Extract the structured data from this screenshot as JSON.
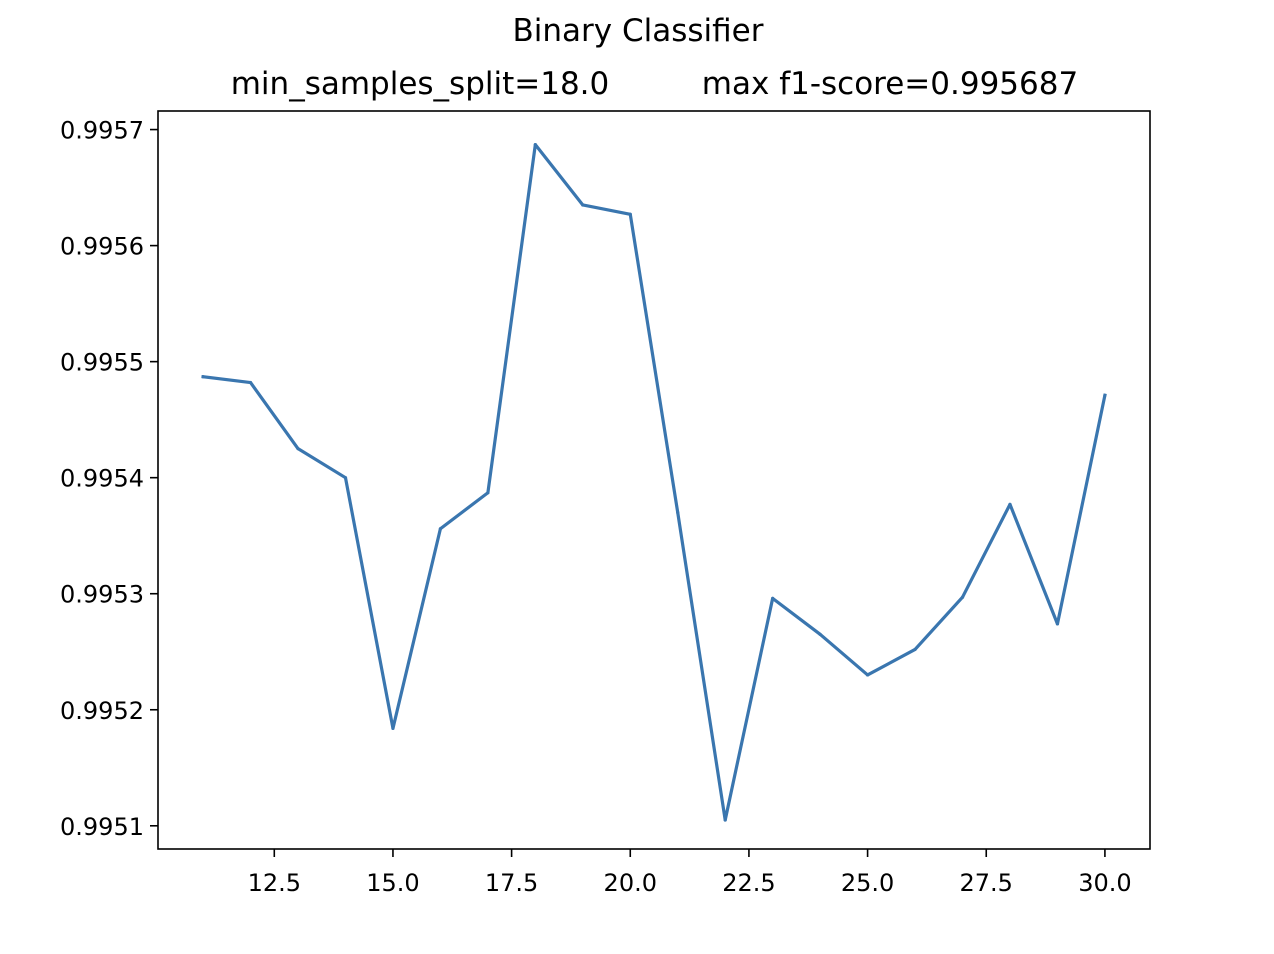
{
  "chart_data": {
    "type": "line",
    "title": "Binary Classifier",
    "subtitle_left": "min_samples_split=18.0",
    "subtitle_right": "max f1-score=0.995687",
    "xlabel": "",
    "ylabel": "",
    "xlim": [
      10.05,
      30.95
    ],
    "ylim": [
      0.99508,
      0.995716
    ],
    "x_ticks": [
      12.5,
      15.0,
      17.5,
      20.0,
      22.5,
      25.0,
      27.5,
      30.0
    ],
    "x_tick_labels": [
      "12.5",
      "15.0",
      "17.5",
      "20.0",
      "22.5",
      "25.0",
      "27.5",
      "30.0"
    ],
    "y_ticks": [
      0.9951,
      0.9952,
      0.9953,
      0.9954,
      0.9955,
      0.9956,
      0.9957
    ],
    "y_tick_labels": [
      "0.9951",
      "0.9952",
      "0.9953",
      "0.9954",
      "0.9955",
      "0.9956",
      "0.9957"
    ],
    "grid": false,
    "legend": "none",
    "series": [
      {
        "color": "#3a76af",
        "x": [
          11,
          12,
          13,
          14,
          15,
          16,
          17,
          18,
          19,
          20,
          21,
          22,
          23,
          24,
          25,
          26,
          27,
          28,
          29,
          30
        ],
        "y": [
          0.995487,
          0.995482,
          0.995425,
          0.9954,
          0.995184,
          0.995356,
          0.995387,
          0.995687,
          0.995635,
          0.995627,
          0.99537,
          0.995105,
          0.995296,
          0.995265,
          0.99523,
          0.995252,
          0.995297,
          0.995377,
          0.995274,
          0.995471
        ]
      }
    ]
  }
}
